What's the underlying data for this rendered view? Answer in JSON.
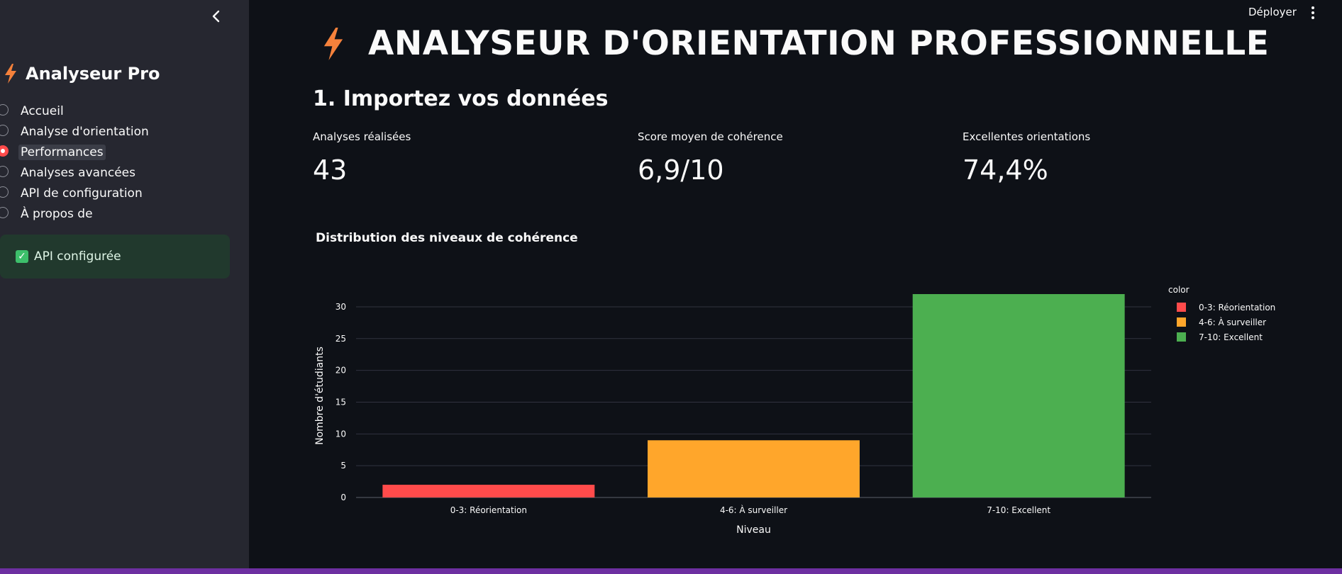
{
  "sidebar": {
    "title": "Analyseur Pro",
    "items": [
      {
        "label": "Accueil",
        "selected": false
      },
      {
        "label": "Analyse d'orientation",
        "selected": false
      },
      {
        "label": "Performances",
        "selected": true
      },
      {
        "label": "Analyses avancées",
        "selected": false
      },
      {
        "label": "API de configuration",
        "selected": false
      },
      {
        "label": "À propos de",
        "selected": false
      }
    ],
    "status_text": "API configurée"
  },
  "header": {
    "deploy_label": "Déployer"
  },
  "main": {
    "title": "ANALYSEUR D'ORIENTATION PROFESSIONNELLE",
    "section_title": "1. Importez vos données",
    "metrics": [
      {
        "label": "Analyses réalisées",
        "value": "43"
      },
      {
        "label": "Score moyen de cohérence",
        "value": "6,9/10"
      },
      {
        "label": "Excellentes orientations",
        "value": "74,4%"
      }
    ]
  },
  "colors": {
    "accent": "#ff4b4b",
    "bolt": "#f5813b",
    "success_bg": "#21392d",
    "bar_red": "#ff4b4b",
    "bar_orange": "#ffa62b",
    "bar_green": "#4caf50"
  },
  "chart_data": {
    "type": "bar",
    "title": "Distribution des niveaux de cohérence",
    "xlabel": "Niveau",
    "ylabel": "Nombre d'étudiants",
    "categories": [
      "0-3: Réorientation",
      "4-6: À surveiller",
      "7-10: Excellent"
    ],
    "values": [
      2,
      9,
      32
    ],
    "colors": [
      "#ff4b4b",
      "#ffa62b",
      "#4caf50"
    ],
    "ylim": [
      0,
      32
    ],
    "yticks": [
      0,
      5,
      10,
      15,
      20,
      25,
      30
    ],
    "grid": true,
    "legend": {
      "title": "color",
      "position": "top-right",
      "entries": [
        "0-3: Réorientation",
        "4-6: À surveiller",
        "7-10: Excellent"
      ]
    }
  }
}
